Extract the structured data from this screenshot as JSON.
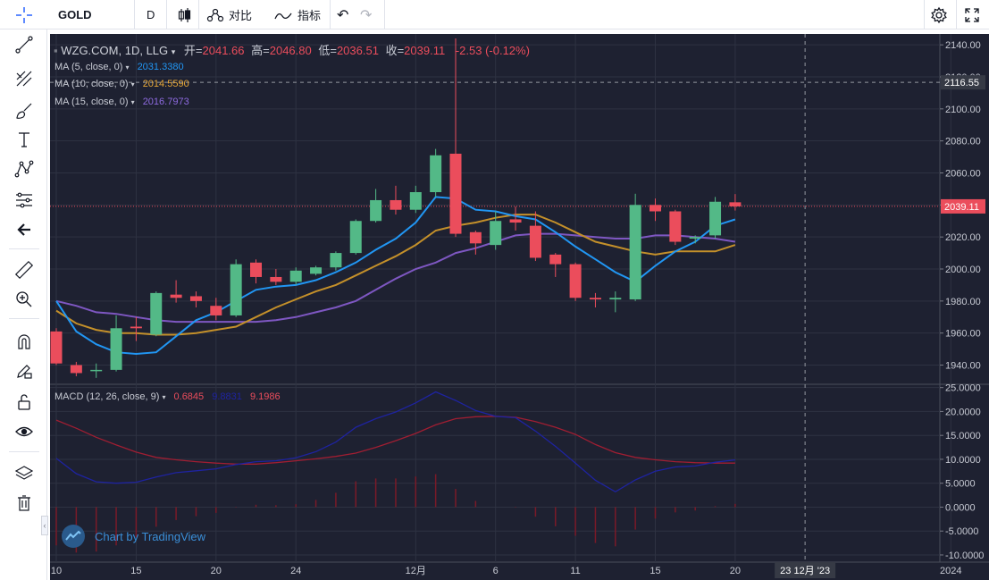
{
  "toolbar": {
    "symbol": "GOLD",
    "interval": "D",
    "compare_label": "对比",
    "indicators_label": "指标"
  },
  "legend": {
    "title": "WZG.COM, 1D, LLG",
    "open_label": "开=",
    "open_value": "2041.66",
    "high_label": "高=",
    "high_value": "2046.80",
    "low_label": "低=",
    "low_value": "2036.51",
    "close_label": "收=",
    "close_value": "2039.11",
    "change": "-2.53 (-0.12%)",
    "ma5_label": "MA (5, close, 0)",
    "ma5_value": "2031.3380",
    "ma10_label": "MA (10, close, 0)",
    "ma10_value": "2014.5590",
    "ma15_label": "MA (15, close, 0)",
    "ma15_value": "2016.7973",
    "macd_label": "MACD (12, 26, close, 9)",
    "macd_hist_value": "0.6845",
    "macd_line_value": "9.8831",
    "macd_signal_value": "9.1986"
  },
  "watermark": "Chart by TradingView",
  "price_axis": {
    "ticks": [
      "2140.00",
      "2120.00",
      "2100.00",
      "2080.00",
      "2060.00",
      "2040.00",
      "2020.00",
      "2000.00",
      "1980.00",
      "1960.00",
      "1940.00"
    ],
    "crosshair_price": "2116.55",
    "last_price": "2039.11"
  },
  "macd_axis": {
    "ticks": [
      "25.0000",
      "20.0000",
      "15.0000",
      "10.0000",
      "5.0000",
      "0.0000",
      "-5.0000",
      "-10.0000"
    ]
  },
  "time_axis": {
    "ticks": [
      "10",
      "15",
      "20",
      "24",
      "12月",
      "6",
      "11",
      "15",
      "20",
      "2024"
    ],
    "crosshair_date": "23 12月 '23"
  },
  "colors": {
    "up": "#53b987",
    "down": "#eb4d5c",
    "ma5": "#2196f3",
    "ma10": "#c4902a",
    "ma15": "#7e57c2",
    "macd_line": "#1e23a0",
    "macd_signal": "#a01e32",
    "histogram": "#7a1a28",
    "background": "#1e2131"
  },
  "chart_data": {
    "type": "candlestick",
    "title": "WZG.COM, 1D, LLG",
    "ylim": [
      1928,
      2144
    ],
    "x_tick_labels": [
      "10",
      "15",
      "20",
      "24",
      "12月",
      "6",
      "11",
      "15",
      "20",
      "2024"
    ],
    "candles": [
      {
        "date": "Nov 9",
        "open": 1961,
        "high": 1963,
        "low": 1940,
        "close": 1941
      },
      {
        "date": "Nov 10",
        "open": 1940,
        "high": 1942,
        "low": 1933,
        "close": 1935
      },
      {
        "date": "Nov 13",
        "open": 1937,
        "high": 1941,
        "low": 1932,
        "close": 1937
      },
      {
        "date": "Nov 14",
        "open": 1937,
        "high": 1971,
        "low": 1936,
        "close": 1963
      },
      {
        "date": "Nov 15",
        "open": 1964,
        "high": 1970,
        "low": 1955,
        "close": 1963
      },
      {
        "date": "Nov 16",
        "open": 1959,
        "high": 1986,
        "low": 1958,
        "close": 1985
      },
      {
        "date": "Nov 17",
        "open": 1984,
        "high": 1993,
        "low": 1979,
        "close": 1982
      },
      {
        "date": "Nov 20",
        "open": 1983,
        "high": 1986,
        "low": 1976,
        "close": 1980
      },
      {
        "date": "Nov 21",
        "open": 1977,
        "high": 1982,
        "low": 1968,
        "close": 1971
      },
      {
        "date": "Nov 22",
        "open": 1971,
        "high": 2006,
        "low": 1970,
        "close": 2003
      },
      {
        "date": "Nov 23",
        "open": 2004,
        "high": 2006,
        "low": 1991,
        "close": 1995
      },
      {
        "date": "Nov 24",
        "open": 1995,
        "high": 2000,
        "low": 1990,
        "close": 1992
      },
      {
        "date": "Nov 27",
        "open": 1992,
        "high": 2001,
        "low": 1990,
        "close": 1999
      },
      {
        "date": "Nov 28",
        "open": 1997,
        "high": 2002,
        "low": 1996,
        "close": 2001
      },
      {
        "date": "Nov 29",
        "open": 2001,
        "high": 2011,
        "low": 1999,
        "close": 2010
      },
      {
        "date": "Nov 30",
        "open": 2010,
        "high": 2031,
        "low": 2009,
        "close": 2030
      },
      {
        "date": "Dec 1",
        "open": 2030,
        "high": 2050,
        "low": 2029,
        "close": 2043
      },
      {
        "date": "Dec 4",
        "open": 2043,
        "high": 2052,
        "low": 2034,
        "close": 2037
      },
      {
        "date": "Dec 5",
        "open": 2037,
        "high": 2052,
        "low": 2035,
        "close": 2048
      },
      {
        "date": "Dec 6",
        "open": 2048,
        "high": 2075,
        "low": 2045,
        "close": 2071
      },
      {
        "date": "Dec 7",
        "open": 2072,
        "high": 2144,
        "low": 2020,
        "close": 2022
      },
      {
        "date": "Dec 8",
        "open": 2023,
        "high": 2024,
        "low": 2009,
        "close": 2016
      },
      {
        "date": "Dec 11",
        "open": 2015,
        "high": 2036,
        "low": 2012,
        "close": 2030
      },
      {
        "date": "Dec 12",
        "open": 2031,
        "high": 2039,
        "low": 2024,
        "close": 2029
      },
      {
        "date": "Dec 13",
        "open": 2027,
        "high": 2036,
        "low": 2005,
        "close": 2007
      },
      {
        "date": "Dec 14",
        "open": 2009,
        "high": 2010,
        "low": 1995,
        "close": 2003
      },
      {
        "date": "Dec 15",
        "open": 2003,
        "high": 2004,
        "low": 1980,
        "close": 1982
      },
      {
        "date": "Dec 18",
        "open": 1982,
        "high": 1985,
        "low": 1976,
        "close": 1981
      },
      {
        "date": "Dec 19",
        "open": 1981,
        "high": 1986,
        "low": 1973,
        "close": 1982
      },
      {
        "date": "Dec 20",
        "open": 1981,
        "high": 2047,
        "low": 1980,
        "close": 2040
      },
      {
        "date": "Dec 21",
        "open": 2040,
        "high": 2044,
        "low": 2030,
        "close": 2036
      },
      {
        "date": "Dec 22",
        "open": 2036,
        "high": 2037,
        "low": 2015,
        "close": 2017
      },
      {
        "date": "Dec 25",
        "open": 2019,
        "high": 2021,
        "low": 2016,
        "close": 2020
      },
      {
        "date": "Dec 26",
        "open": 2021,
        "high": 2045,
        "low": 2019,
        "close": 2042
      },
      {
        "date": "Dec 27",
        "open": 2041.66,
        "high": 2046.8,
        "low": 2036.51,
        "close": 2039.11
      }
    ],
    "ma5": [
      1980,
      1961,
      1953,
      1948,
      1947,
      1948,
      1958,
      1968,
      1973,
      1980,
      1987,
      1989,
      1990,
      1993,
      1998,
      2004,
      2012,
      2019,
      2029,
      2045,
      2044,
      2037,
      2036,
      2033,
      2031,
      2023,
      2014,
      2006,
      1998,
      1992,
      2002,
      2011,
      2017,
      2027,
      2031
    ],
    "ma10": [
      1974,
      1966,
      1962,
      1960,
      1960,
      1959,
      1959,
      1960,
      1962,
      1964,
      1970,
      1976,
      1981,
      1986,
      1990,
      1996,
      2002,
      2008,
      2015,
      2024,
      2027,
      2029,
      2032,
      2034,
      2034,
      2029,
      2023,
      2017,
      2014,
      2011,
      2009,
      2011,
      2011,
      2011,
      2015
    ],
    "ma15": [
      1980,
      1977,
      1973,
      1972,
      1970,
      1968,
      1967,
      1967,
      1967,
      1967,
      1967,
      1968,
      1970,
      1973,
      1976,
      1980,
      1987,
      1994,
      2000,
      2004,
      2010,
      2013,
      2017,
      2021,
      2022,
      2022,
      2021,
      2020,
      2019,
      2019,
      2021,
      2021,
      2020,
      2019,
      2017
    ],
    "macd_line": [
      10.2,
      7.0,
      5.3,
      5.0,
      5.2,
      6.3,
      7.2,
      7.6,
      8.0,
      8.9,
      9.5,
      9.7,
      10.3,
      11.6,
      13.6,
      16.7,
      18.5,
      19.9,
      21.8,
      24.1,
      22.3,
      20.2,
      19.0,
      18.7,
      15.9,
      12.7,
      9.2,
      5.6,
      3.2,
      5.7,
      7.5,
      8.4,
      8.6,
      9.4,
      9.88
    ],
    "macd_signal": [
      18.2,
      16.5,
      14.6,
      13.0,
      11.5,
      10.4,
      9.9,
      9.5,
      9.2,
      9.0,
      9.0,
      9.3,
      9.7,
      10.1,
      10.6,
      11.3,
      12.5,
      13.9,
      15.4,
      17.2,
      18.5,
      18.9,
      19.0,
      18.8,
      17.9,
      16.7,
      15.2,
      13.1,
      11.4,
      10.4,
      9.9,
      9.5,
      9.3,
      9.2,
      9.2
    ],
    "macd_hist": [
      -8.0,
      -9.5,
      -9.3,
      -8.0,
      -6.3,
      -4.1,
      -2.7,
      -1.9,
      -1.2,
      -0.1,
      0.5,
      0.4,
      0.6,
      1.5,
      3.0,
      5.4,
      6.0,
      6.0,
      6.4,
      6.9,
      3.8,
      1.3,
      0.0,
      -0.1,
      -2.0,
      -4.0,
      -6.0,
      -7.5,
      -8.2,
      -4.7,
      -2.4,
      -1.1,
      -0.7,
      0.2,
      0.68
    ],
    "macd_ylim": [
      -11.5,
      25.5
    ]
  }
}
